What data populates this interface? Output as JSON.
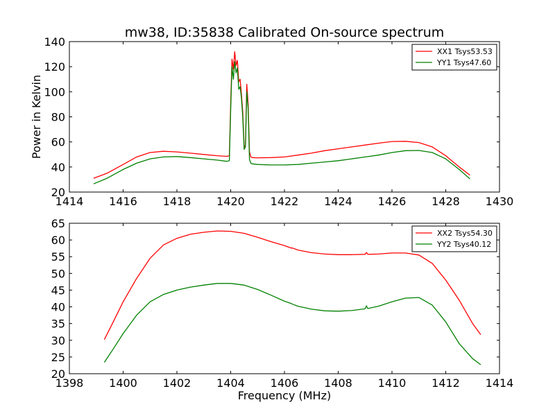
{
  "chart_data": [
    {
      "type": "line",
      "title": "mw38, ID:35838 Calibrated On-source spectrum",
      "xlabel": "",
      "ylabel": "Power in Kelvin",
      "xlim": [
        1414,
        1430
      ],
      "ylim": [
        20,
        140
      ],
      "xticks": [
        1414,
        1416,
        1418,
        1420,
        1422,
        1424,
        1426,
        1428,
        1430
      ],
      "yticks": [
        20,
        40,
        60,
        80,
        100,
        120,
        140
      ],
      "grid": false,
      "legend": "top-right",
      "series": [
        {
          "name": "XX1 Tsys53.53",
          "color": "#ff0000",
          "x": [
            1414.9,
            1415.4,
            1416.0,
            1416.5,
            1417.0,
            1417.5,
            1418.0,
            1418.5,
            1419.0,
            1419.5,
            1419.85,
            1419.95,
            1420.0,
            1420.05,
            1420.1,
            1420.15,
            1420.2,
            1420.25,
            1420.3,
            1420.35,
            1420.4,
            1420.45,
            1420.5,
            1420.55,
            1420.6,
            1420.65,
            1420.7,
            1420.75,
            1420.8,
            1421.0,
            1421.5,
            1422.0,
            1422.5,
            1423.0,
            1423.5,
            1424.0,
            1424.5,
            1425.0,
            1425.5,
            1426.0,
            1426.5,
            1427.0,
            1427.5,
            1428.0,
            1428.5,
            1428.9
          ],
          "y": [
            31,
            35,
            42,
            48,
            51.5,
            52.5,
            52,
            51,
            50,
            49,
            48.5,
            49,
            90,
            126,
            118,
            132,
            121,
            125,
            108,
            110,
            98,
            84,
            56,
            57,
            106,
            90,
            52,
            48,
            47.5,
            47.3,
            47.5,
            48,
            49.5,
            51,
            53,
            54.5,
            56,
            57.5,
            59,
            60.3,
            60.5,
            59.5,
            56,
            49,
            40,
            33.5
          ]
        },
        {
          "name": "YY1 Tsys47.60",
          "color": "#008000",
          "x": [
            1414.9,
            1415.4,
            1416.0,
            1416.5,
            1417.0,
            1417.5,
            1418.0,
            1418.5,
            1419.0,
            1419.5,
            1419.85,
            1419.95,
            1420.0,
            1420.05,
            1420.1,
            1420.15,
            1420.2,
            1420.25,
            1420.3,
            1420.35,
            1420.4,
            1420.45,
            1420.5,
            1420.55,
            1420.6,
            1420.65,
            1420.7,
            1420.75,
            1420.8,
            1421.0,
            1421.5,
            1422.0,
            1422.5,
            1423.0,
            1423.5,
            1424.0,
            1424.5,
            1425.0,
            1425.5,
            1426.0,
            1426.5,
            1427.0,
            1427.5,
            1428.0,
            1428.5,
            1428.9
          ],
          "y": [
            26.5,
            31,
            38,
            43,
            46.5,
            48,
            48.3,
            47.5,
            46.5,
            45.5,
            44.5,
            45,
            85,
            120,
            110,
            124,
            115,
            119,
            102,
            104,
            95,
            80,
            54,
            56,
            100,
            86,
            46,
            43,
            42.5,
            42,
            41.6,
            41.6,
            42,
            43,
            44,
            45,
            46.5,
            48,
            49.5,
            51.5,
            53,
            53.2,
            51.5,
            46.5,
            38,
            30.5
          ]
        }
      ]
    },
    {
      "type": "line",
      "title": "",
      "xlabel": "Frequency (MHz)",
      "ylabel": "",
      "xlim": [
        1398,
        1414
      ],
      "ylim": [
        20,
        65
      ],
      "xticks": [
        1398,
        1400,
        1402,
        1404,
        1406,
        1408,
        1410,
        1412,
        1414
      ],
      "yticks": [
        20,
        25,
        30,
        35,
        40,
        45,
        50,
        55,
        60,
        65
      ],
      "grid": false,
      "legend": "top-right",
      "series": [
        {
          "name": "XX2 Tsys54.30",
          "color": "#ff0000",
          "x": [
            1399.3,
            1399.6,
            1400.0,
            1400.5,
            1401.0,
            1401.5,
            1402.0,
            1402.5,
            1403.0,
            1403.5,
            1404.0,
            1404.5,
            1405.0,
            1405.5,
            1406.0,
            1406.25,
            1406.3,
            1406.5,
            1407.0,
            1407.5,
            1408.0,
            1408.5,
            1409.0,
            1409.05,
            1409.1,
            1409.5,
            1410.0,
            1410.5,
            1411.0,
            1411.5,
            1412.0,
            1412.5,
            1413.0,
            1413.3
          ],
          "y": [
            30.2,
            35,
            41.5,
            48.5,
            54.5,
            58.5,
            60.5,
            61.7,
            62.3,
            62.7,
            62.6,
            62,
            60.8,
            59.5,
            58.3,
            57.6,
            57.6,
            57,
            56.2,
            55.8,
            55.6,
            55.6,
            55.7,
            56.3,
            55.7,
            55.8,
            56.1,
            56.1,
            55.5,
            53,
            48,
            42,
            35,
            31.7
          ]
        },
        {
          "name": "YY2 Tsys40.12",
          "color": "#008000",
          "x": [
            1399.3,
            1399.6,
            1400.0,
            1400.5,
            1401.0,
            1401.5,
            1402.0,
            1402.5,
            1403.0,
            1403.5,
            1404.0,
            1404.5,
            1405.0,
            1405.5,
            1406.0,
            1406.25,
            1406.3,
            1406.5,
            1407.0,
            1407.5,
            1408.0,
            1408.5,
            1409.0,
            1409.05,
            1409.1,
            1409.5,
            1410.0,
            1410.5,
            1411.0,
            1411.5,
            1412.0,
            1412.5,
            1413.0,
            1413.3
          ],
          "y": [
            23.4,
            27,
            32,
            37.5,
            41.5,
            43.7,
            45,
            45.9,
            46.5,
            47,
            47,
            46.5,
            45.2,
            43.5,
            41.7,
            41,
            40.8,
            40.2,
            39.3,
            38.8,
            38.7,
            38.9,
            39.4,
            40.3,
            39.5,
            40.2,
            41.5,
            42.6,
            42.8,
            40.5,
            35.5,
            29,
            24.5,
            22.7
          ]
        }
      ]
    }
  ]
}
